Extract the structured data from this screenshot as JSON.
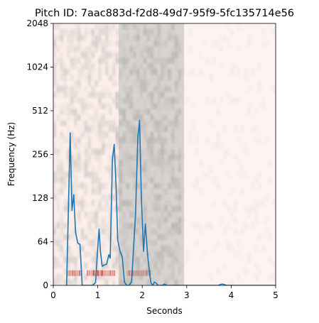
{
  "chart_data": {
    "type": "line",
    "title": "Pitch ID: 7aac883d-f2d8-49d7-95f9-5fc135714e56",
    "xlabel": "Seconds",
    "ylabel": "Frequency (Hz)",
    "xlim": [
      0,
      5
    ],
    "y_scale": "log2-with-zero (tick labels: 0, 64, 128, 256, 512, 1024, 2048)",
    "x_ticks": [
      "0",
      "1",
      "2",
      "3",
      "4",
      "5"
    ],
    "y_ticks": [
      "0",
      "64",
      "128",
      "256",
      "512",
      "1024",
      "2048"
    ],
    "grid": false,
    "shaded_region": {
      "x_start": 1.47,
      "x_end": 2.94,
      "color": "#bfb8b4"
    },
    "background": "spectrogram (grayscale, reddish tint outside shaded region)",
    "series": [
      {
        "color": "#1f77b4",
        "points": [
          [
            0.3,
            0
          ],
          [
            0.38,
            360
          ],
          [
            0.42,
            105
          ],
          [
            0.46,
            135
          ],
          [
            0.5,
            75
          ],
          [
            0.55,
            62
          ],
          [
            0.6,
            60
          ],
          [
            0.65,
            0
          ],
          [
            0.7,
            0
          ],
          [
            0.8,
            0
          ],
          [
            0.88,
            0
          ],
          [
            0.95,
            4
          ],
          [
            1.0,
            55
          ],
          [
            1.03,
            78
          ],
          [
            1.06,
            50
          ],
          [
            1.1,
            28
          ],
          [
            1.15,
            30
          ],
          [
            1.2,
            31
          ],
          [
            1.25,
            45
          ],
          [
            1.28,
            40
          ],
          [
            1.33,
            240
          ],
          [
            1.37,
            300
          ],
          [
            1.41,
            160
          ],
          [
            1.45,
            65
          ],
          [
            1.5,
            50
          ],
          [
            1.55,
            42
          ],
          [
            1.6,
            5
          ],
          [
            1.65,
            0
          ],
          [
            1.7,
            0
          ],
          [
            1.76,
            5
          ],
          [
            1.85,
            100
          ],
          [
            1.9,
            330
          ],
          [
            1.94,
            440
          ],
          [
            1.98,
            130
          ],
          [
            2.03,
            50
          ],
          [
            2.07,
            85
          ],
          [
            2.12,
            45
          ],
          [
            2.17,
            15
          ],
          [
            2.2,
            3
          ],
          [
            2.24,
            0
          ],
          [
            2.27,
            5
          ],
          [
            2.32,
            3
          ],
          [
            2.36,
            0
          ],
          [
            2.45,
            0
          ],
          [
            2.5,
            2
          ],
          [
            2.55,
            0
          ],
          [
            3.0,
            0
          ],
          [
            3.2,
            0
          ],
          [
            3.5,
            0
          ],
          [
            3.7,
            0
          ],
          [
            3.8,
            2
          ],
          [
            3.9,
            0
          ],
          [
            4.1,
            0
          ],
          [
            4.5,
            0
          ],
          [
            5.0,
            0
          ]
        ]
      }
    ]
  }
}
